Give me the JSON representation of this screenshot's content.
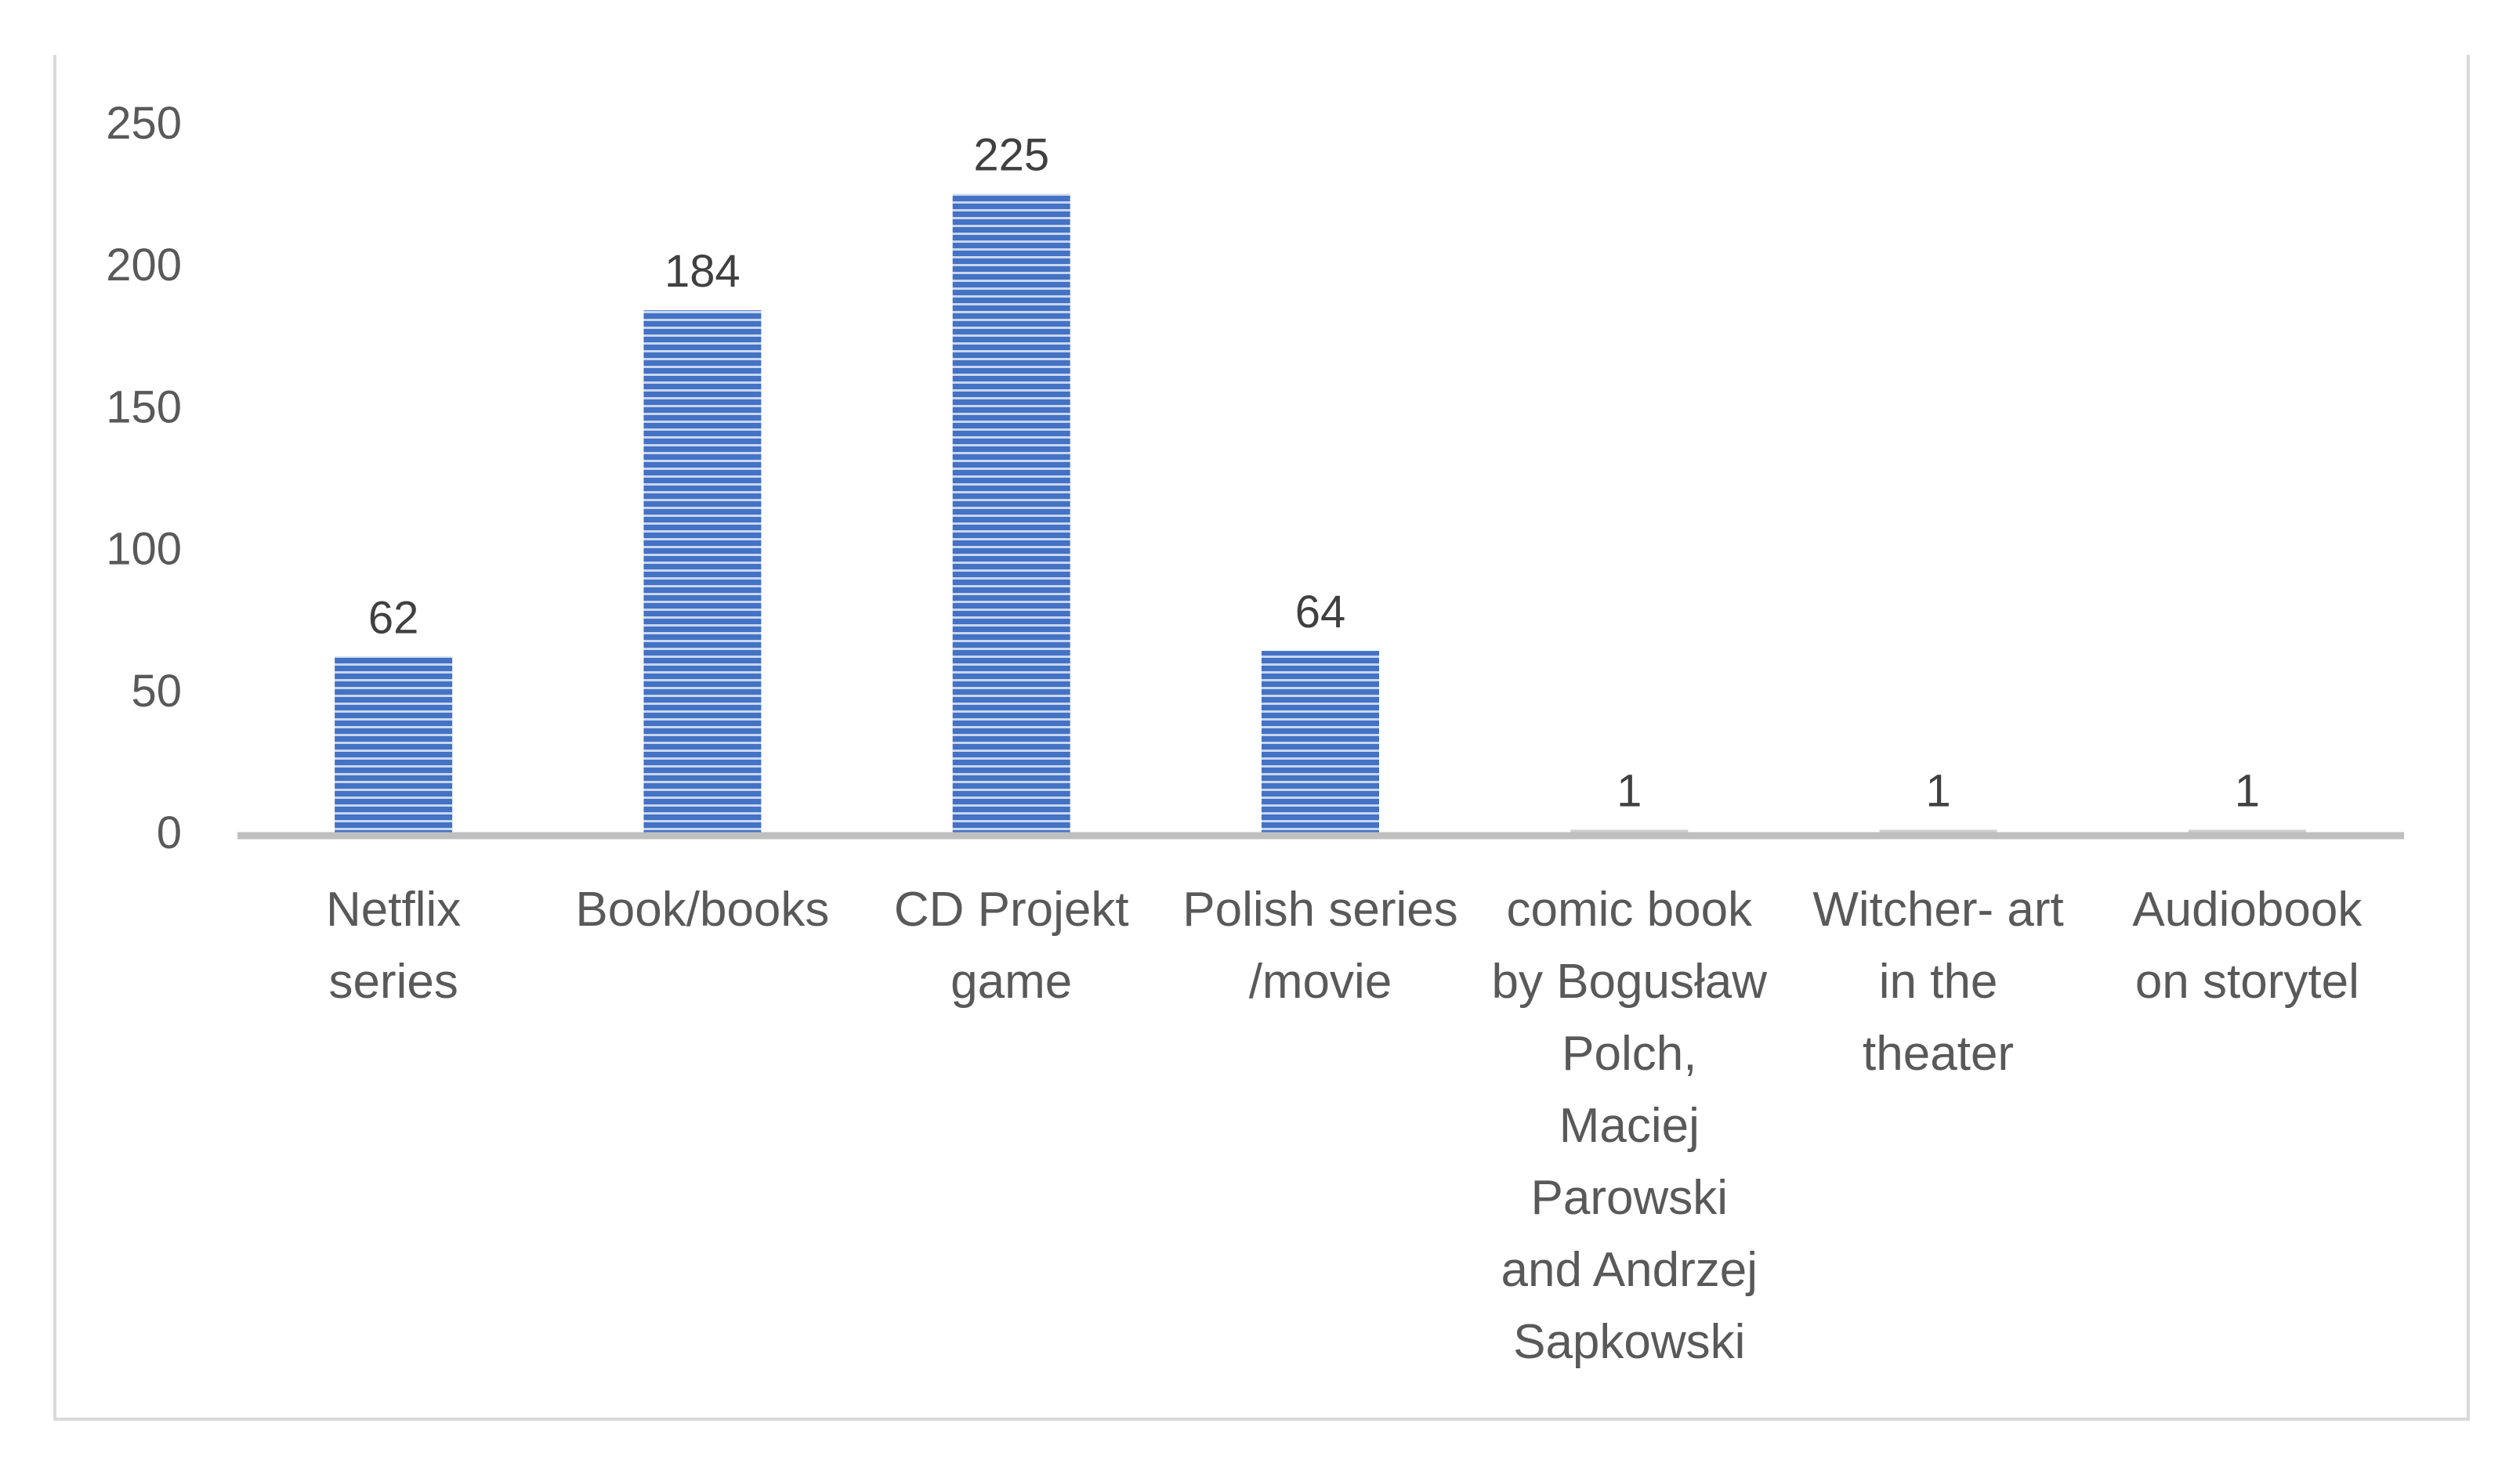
{
  "chart_data": {
    "type": "bar",
    "categories": [
      [
        "Netflix",
        "series"
      ],
      [
        "Book/books"
      ],
      [
        "CD Projekt",
        "game"
      ],
      [
        "Polish series",
        "/movie"
      ],
      [
        "comic book",
        "by Bogusław",
        "Polch,",
        "Maciej",
        "Parowski",
        "and Andrzej",
        "Sapkowski"
      ],
      [
        "Witcher- art",
        "in the",
        "theater"
      ],
      [
        "Audiobook",
        "on storytel"
      ]
    ],
    "values": [
      62,
      184,
      225,
      64,
      1,
      1,
      1
    ],
    "data_labels": [
      "62",
      "184",
      "225",
      "64",
      "1",
      "1",
      "1"
    ],
    "title": "",
    "xlabel": "",
    "ylabel": "",
    "ylim": [
      0,
      250
    ],
    "yticks": [
      0,
      50,
      100,
      150,
      200,
      250
    ],
    "grid": false,
    "legend": "none",
    "colors": {
      "bar": "#4472c4",
      "bar_stripe": "#ffffff",
      "axis": "#bfbfbf",
      "frame": "#d9d9d9"
    }
  }
}
